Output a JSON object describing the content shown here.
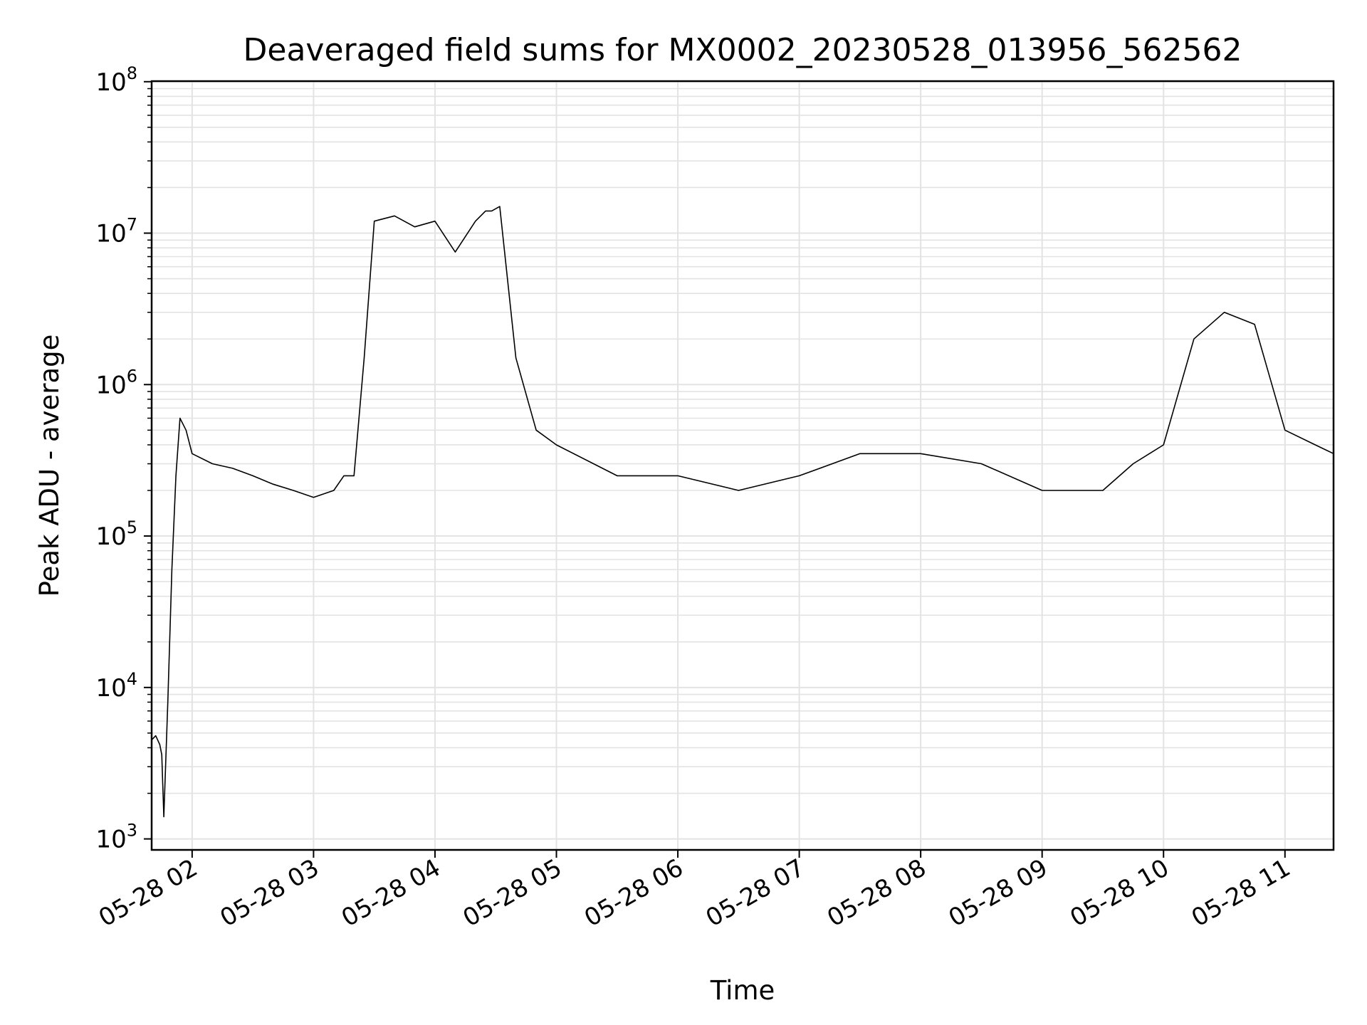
{
  "chart_data": {
    "type": "line",
    "title": "Deaveraged field sums for MX0002_20230528_013956_562562",
    "xlabel": "Time",
    "ylabel": "Peak ADU - average",
    "yscale": "log",
    "ylim": [
      1000,
      100000000
    ],
    "xlim": [
      "2023-05-28 01:40",
      "2023-05-28 11:24"
    ],
    "grid": true,
    "line_color": "#000000",
    "x_ticks": [
      "2023-05-28 02:00",
      "2023-05-28 03:00",
      "2023-05-28 04:00",
      "2023-05-28 05:00",
      "2023-05-28 06:00",
      "2023-05-28 07:00",
      "2023-05-28 08:00",
      "2023-05-28 09:00",
      "2023-05-28 10:00",
      "2023-05-28 11:00"
    ],
    "x_tick_labels": [
      "05-28 02",
      "05-28 03",
      "05-28 04",
      "05-28 05",
      "05-28 06",
      "05-28 07",
      "05-28 08",
      "05-28 09",
      "05-28 10",
      "05-28 11"
    ],
    "y_ticks": [
      1000,
      10000,
      100000,
      1000000,
      10000000,
      100000000
    ],
    "y_tick_labels": [
      {
        "base": "10",
        "exp": "3"
      },
      {
        "base": "10",
        "exp": "4"
      },
      {
        "base": "10",
        "exp": "5"
      },
      {
        "base": "10",
        "exp": "6"
      },
      {
        "base": "10",
        "exp": "7"
      },
      {
        "base": "10",
        "exp": "8"
      }
    ],
    "series": [
      {
        "x": [
          "2023-05-28 01:40",
          "2023-05-28 01:42",
          "2023-05-28 01:44",
          "2023-05-28 01:45",
          "2023-05-28 01:46",
          "2023-05-28 01:48",
          "2023-05-28 01:50",
          "2023-05-28 01:52",
          "2023-05-28 01:54",
          "2023-05-28 01:57",
          "2023-05-28 02:00",
          "2023-05-28 02:10",
          "2023-05-28 02:20",
          "2023-05-28 02:30",
          "2023-05-28 02:40",
          "2023-05-28 02:50",
          "2023-05-28 03:00",
          "2023-05-28 03:10",
          "2023-05-28 03:15",
          "2023-05-28 03:20",
          "2023-05-28 03:25",
          "2023-05-28 03:30",
          "2023-05-28 03:40",
          "2023-05-28 03:50",
          "2023-05-28 04:00",
          "2023-05-28 04:10",
          "2023-05-28 04:20",
          "2023-05-28 04:25",
          "2023-05-28 04:28",
          "2023-05-28 04:32",
          "2023-05-28 04:40",
          "2023-05-28 04:50",
          "2023-05-28 05:00",
          "2023-05-28 05:30",
          "2023-05-28 06:00",
          "2023-05-28 06:30",
          "2023-05-28 07:00",
          "2023-05-28 07:30",
          "2023-05-28 08:00",
          "2023-05-28 08:30",
          "2023-05-28 09:00",
          "2023-05-28 09:30",
          "2023-05-28 09:45",
          "2023-05-28 10:00",
          "2023-05-28 10:15",
          "2023-05-28 10:30",
          "2023-05-28 10:45",
          "2023-05-28 11:00",
          "2023-05-28 11:15",
          "2023-05-28 11:24"
        ],
        "y": [
          4500,
          4800,
          4200,
          3600,
          1400,
          8000,
          60000,
          250000,
          600000,
          500000,
          350000,
          300000,
          280000,
          250000,
          220000,
          200000,
          180000,
          200000,
          250000,
          250000,
          1500000,
          12000000,
          13000000,
          11000000,
          12000000,
          7500000,
          12000000,
          14000000,
          14000000,
          15000000,
          1500000,
          500000,
          400000,
          250000,
          250000,
          200000,
          250000,
          350000,
          350000,
          300000,
          200000,
          200000,
          300000,
          400000,
          2000000,
          3000000,
          2500000,
          500000,
          400000,
          350000
        ]
      }
    ]
  }
}
